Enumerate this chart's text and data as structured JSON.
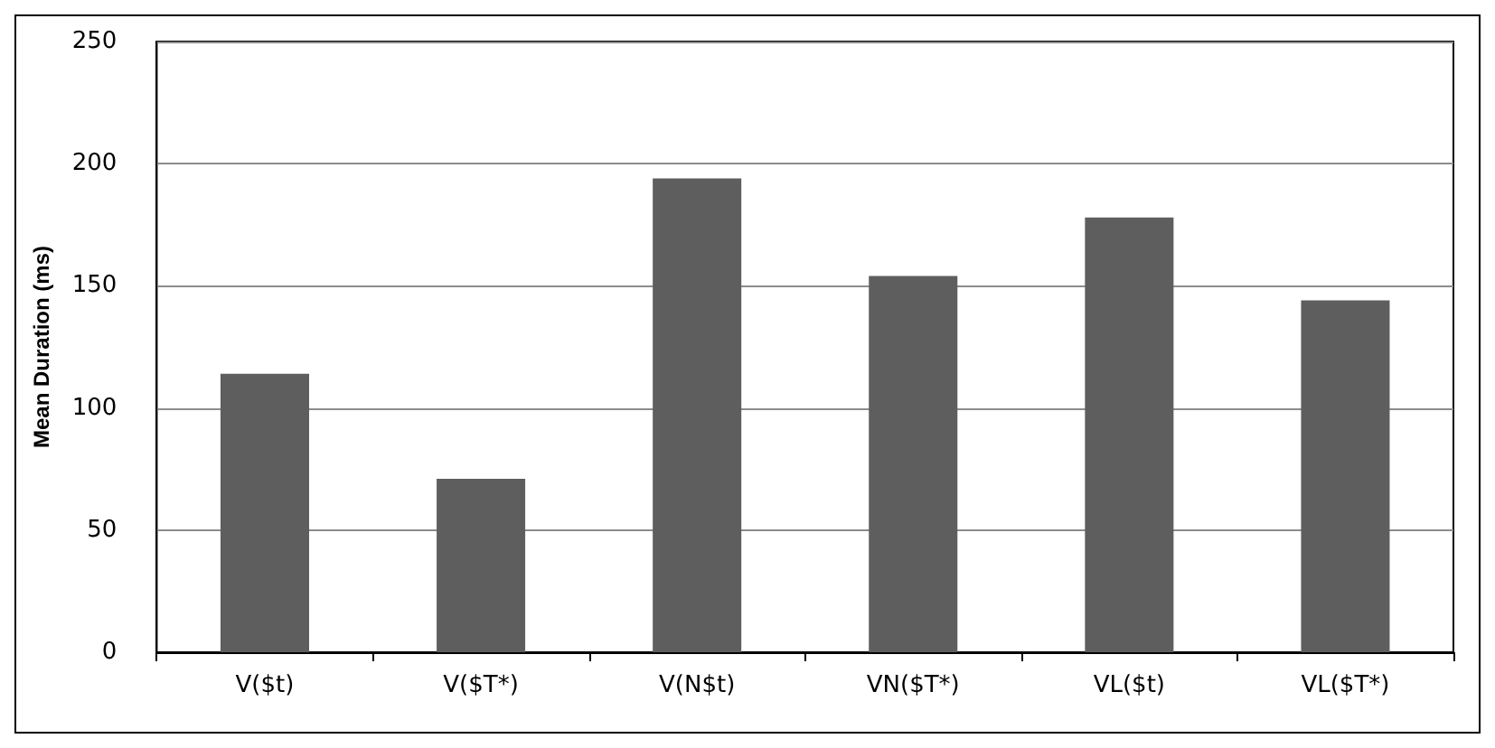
{
  "chart_data": {
    "type": "bar",
    "ylabel": "Mean Duration (ms)",
    "categories": [
      "V($t)",
      "V($T*)",
      "V(N$t)",
      "VN($T*)",
      "VL($t)",
      "VL($T*)"
    ],
    "values": [
      114,
      71,
      194,
      154,
      178,
      144
    ],
    "color": "#5e5e5e",
    "ylim": [
      0,
      250
    ],
    "yticks": [
      0,
      50,
      100,
      150,
      200,
      250
    ],
    "grid": "y"
  }
}
